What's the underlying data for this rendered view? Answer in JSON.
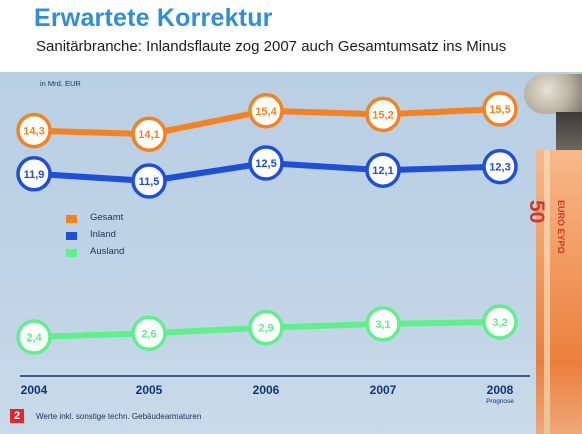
{
  "header": {
    "title": "Erwartete Korrektur",
    "subtitle": "Sanitärbranche: Inlandsflaute zog 2007 auch Gesamtumsatz ins Minus"
  },
  "unit_note": "in Mrd. EUR",
  "footnote": {
    "badge": "2",
    "text": "Werte inkl. sonstige techn. Gebäudearmaturen"
  },
  "decoration": {
    "banknote_value": "50",
    "banknote_text": "EURO EYPΩ"
  },
  "colors": {
    "gesamt": "#f5821f",
    "inland": "#1f4fd8",
    "ausland": "#5ef08a",
    "title": "#2f8fd4",
    "axis": "#12356e"
  },
  "chart_data": {
    "type": "line",
    "title": "Erwartete Korrektur",
    "subtitle": "Sanitärbranche: Inlandsflaute zog 2007 auch Gesamtumsatz ins Minus",
    "ylabel": "in Mrd. EUR",
    "x": [
      "2004",
      "2005",
      "2006",
      "2007",
      "2008"
    ],
    "x_sublabels": [
      "",
      "",
      "",
      "",
      "Prognose"
    ],
    "series": [
      {
        "name": "Gesamt",
        "values": [
          14.3,
          14.1,
          15.4,
          15.2,
          15.5
        ],
        "labels": [
          "14,3",
          "14,1",
          "15,4",
          "15,2",
          "15,5"
        ],
        "color": "#f5821f"
      },
      {
        "name": "Inland",
        "values": [
          11.9,
          11.5,
          12.5,
          12.1,
          12.3
        ],
        "labels": [
          "11,9",
          "11,5",
          "12,5",
          "12,1",
          "12,3"
        ],
        "color": "#1f4fd8"
      },
      {
        "name": "Ausland",
        "values": [
          2.4,
          2.6,
          2.9,
          3.1,
          3.2
        ],
        "labels": [
          "2,4",
          "2,6",
          "2,9",
          "3,1",
          "3,2"
        ],
        "color": "#5ef08a"
      }
    ],
    "legend": [
      "Gesamt",
      "Inland",
      "Ausland"
    ],
    "legend_position": "left-middle",
    "grid": false
  }
}
